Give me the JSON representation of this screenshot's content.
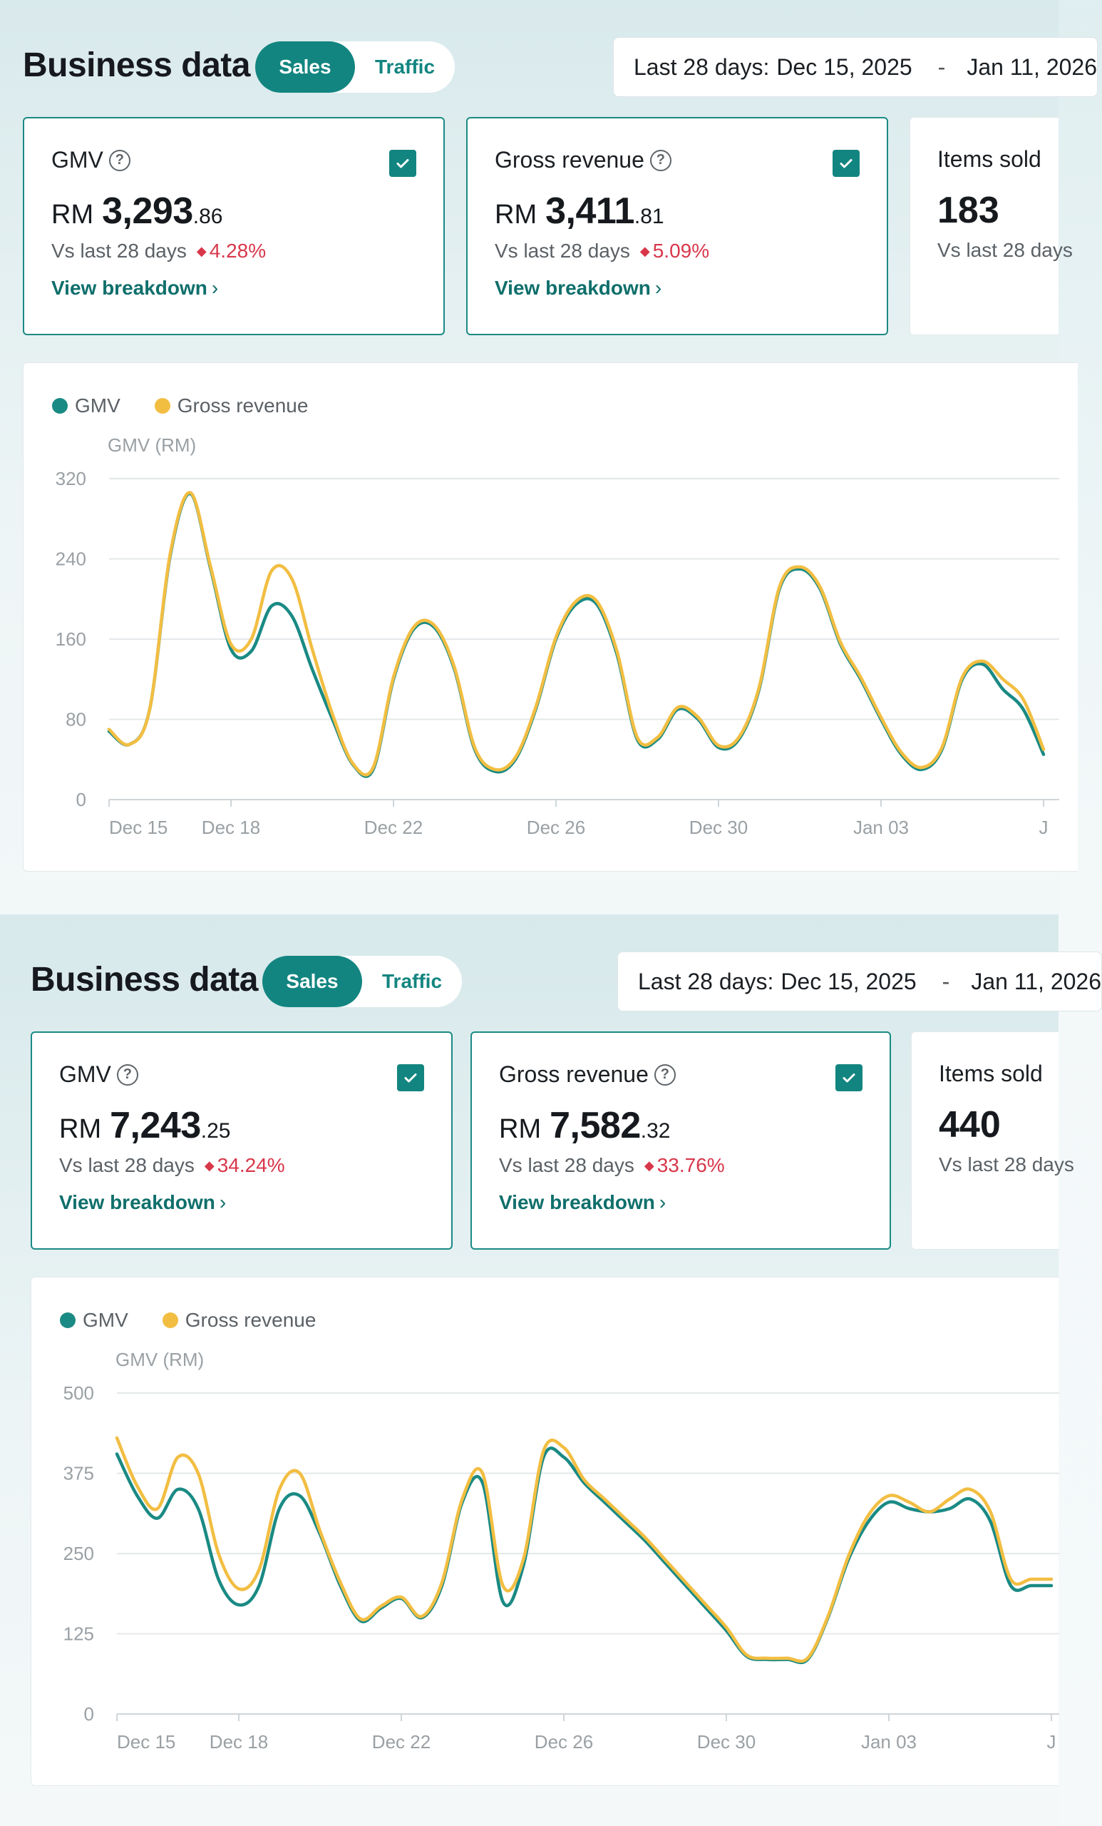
{
  "colors": {
    "accent": "#138580",
    "gmv_line": "#1a8a84",
    "revenue_line": "#f2be42",
    "negative": "#d8374a"
  },
  "top": {
    "title": "Business data",
    "tabs": {
      "active": "Sales",
      "inactive": "Traffic"
    },
    "date": {
      "label": "Last 28 days:",
      "start": "Dec 15, 2025",
      "sep": "-",
      "end": "Jan 11, 2026"
    },
    "cards": [
      {
        "label": "GMV",
        "currency": "RM",
        "main": "3,293",
        "dec": ".86",
        "compare": "Vs last 28 days",
        "pct": "4.28%",
        "link": "View breakdown",
        "checked": true
      },
      {
        "label": "Gross revenue",
        "currency": "RM",
        "main": "3,411",
        "dec": ".81",
        "compare": "Vs last 28 days",
        "pct": "5.09%",
        "link": "View breakdown",
        "checked": true
      },
      {
        "label": "Items sold",
        "value": "183",
        "compare": "Vs last 28 days"
      }
    ],
    "legend": {
      "gmv": "GMV",
      "revenue": "Gross revenue"
    },
    "ylabel": "GMV (RM)"
  },
  "bottom": {
    "title": "Business data",
    "tabs": {
      "active": "Sales",
      "inactive": "Traffic"
    },
    "date": {
      "label": "Last 28 days:",
      "start": "Dec 15, 2025",
      "sep": "-",
      "end": "Jan 11, 2026"
    },
    "cards": [
      {
        "label": "GMV",
        "currency": "RM",
        "main": "7,243",
        "dec": ".25",
        "compare": "Vs last 28 days",
        "pct": "34.24%",
        "link": "View breakdown",
        "checked": true
      },
      {
        "label": "Gross revenue",
        "currency": "RM",
        "main": "7,582",
        "dec": ".32",
        "compare": "Vs last 28 days",
        "pct": "33.76%",
        "link": "View breakdown",
        "checked": true
      },
      {
        "label": "Items sold",
        "value": "440",
        "compare": "Vs last 28 days"
      }
    ],
    "legend": {
      "gmv": "GMV",
      "revenue": "Gross revenue"
    },
    "ylabel": "GMV (RM)"
  },
  "chart_data": [
    {
      "type": "line",
      "ylabel": "GMV (RM)",
      "ylim": [
        0,
        320
      ],
      "yticks": [
        0,
        80,
        160,
        240,
        320
      ],
      "xticks": [
        {
          "label": "Dec 15",
          "x": 0
        },
        {
          "label": "Dec 18",
          "x": 3
        },
        {
          "label": "Dec 22",
          "x": 7
        },
        {
          "label": "Dec 26",
          "x": 11
        },
        {
          "label": "Dec 30",
          "x": 15
        },
        {
          "label": "Jan 03",
          "x": 19
        },
        {
          "label": "J",
          "x": 23
        }
      ],
      "x": [
        0,
        0.5,
        1,
        1.5,
        2,
        2.5,
        3,
        3.5,
        4,
        4.5,
        5,
        5.5,
        6,
        6.5,
        7,
        7.5,
        8,
        8.5,
        9,
        9.5,
        10,
        10.5,
        11,
        11.5,
        12,
        12.5,
        13,
        13.5,
        14,
        14.5,
        15,
        15.5,
        16,
        16.5,
        17,
        17.5,
        18,
        18.5,
        19,
        19.5,
        20,
        20.5,
        21,
        21.5,
        22,
        22.5,
        23
      ],
      "grid": true,
      "legend": "top-left",
      "series": [
        {
          "name": "GMV",
          "color": "#1a8a84",
          "values": [
            68,
            55,
            90,
            242,
            305,
            230,
            150,
            148,
            193,
            183,
            130,
            80,
            35,
            30,
            120,
            170,
            172,
            130,
            50,
            28,
            40,
            90,
            160,
            195,
            195,
            145,
            60,
            60,
            90,
            80,
            52,
            60,
            110,
            210,
            230,
            210,
            155,
            120,
            80,
            45,
            30,
            50,
            120,
            135,
            110,
            90,
            45
          ]
        },
        {
          "name": "Gross revenue",
          "color": "#f2be42",
          "values": [
            70,
            55,
            90,
            244,
            306,
            232,
            155,
            160,
            228,
            220,
            150,
            85,
            36,
            32,
            122,
            172,
            174,
            132,
            52,
            30,
            42,
            92,
            162,
            198,
            198,
            148,
            62,
            62,
            92,
            82,
            54,
            62,
            112,
            212,
            232,
            212,
            157,
            122,
            82,
            47,
            32,
            52,
            122,
            138,
            120,
            100,
            50
          ]
        }
      ]
    },
    {
      "type": "line",
      "ylabel": "GMV (RM)",
      "ylim": [
        0,
        500
      ],
      "yticks": [
        0,
        125,
        250,
        375,
        500
      ],
      "xticks": [
        {
          "label": "Dec 15",
          "x": 0
        },
        {
          "label": "Dec 18",
          "x": 3
        },
        {
          "label": "Dec 22",
          "x": 7
        },
        {
          "label": "Dec 26",
          "x": 11
        },
        {
          "label": "Dec 30",
          "x": 15
        },
        {
          "label": "Jan 03",
          "x": 19
        },
        {
          "label": "J",
          "x": 23
        }
      ],
      "x": [
        0,
        0.5,
        1,
        1.5,
        2,
        2.5,
        3,
        3.5,
        4,
        4.5,
        5,
        5.5,
        6,
        6.5,
        7,
        7.5,
        8,
        8.5,
        9,
        9.5,
        10,
        10.5,
        11,
        11.5,
        12,
        12.5,
        13,
        13.5,
        14,
        14.5,
        15,
        15.5,
        16,
        16.5,
        17,
        17.5,
        18,
        18.5,
        19,
        19.5,
        20,
        20.5,
        21,
        21.5,
        22,
        22.5,
        23
      ],
      "grid": true,
      "legend": "top-left",
      "series": [
        {
          "name": "GMV",
          "color": "#1a8a84",
          "values": [
            405,
            340,
            305,
            350,
            320,
            210,
            170,
            200,
            320,
            340,
            280,
            200,
            145,
            165,
            180,
            150,
            200,
            330,
            360,
            175,
            230,
            400,
            400,
            360,
            330,
            300,
            270,
            235,
            200,
            165,
            130,
            90,
            85,
            85,
            85,
            150,
            240,
            300,
            330,
            320,
            315,
            320,
            335,
            300,
            200,
            200,
            200
          ]
        },
        {
          "name": "Gross revenue",
          "color": "#f2be42",
          "values": [
            430,
            355,
            320,
            400,
            375,
            250,
            195,
            225,
            350,
            375,
            285,
            205,
            148,
            168,
            182,
            152,
            205,
            335,
            375,
            200,
            240,
            410,
            415,
            365,
            335,
            305,
            275,
            240,
            205,
            170,
            135,
            92,
            87,
            87,
            87,
            152,
            245,
            310,
            340,
            330,
            315,
            335,
            350,
            315,
            210,
            210,
            210
          ]
        }
      ]
    }
  ]
}
